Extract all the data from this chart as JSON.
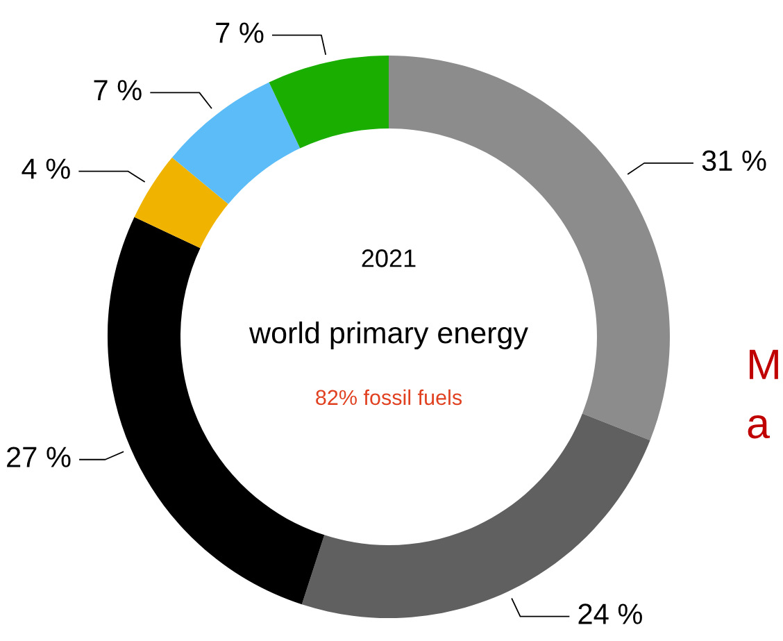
{
  "chart_data": {
    "type": "donut",
    "title": "2021",
    "subtitle": "world primary energy",
    "categories": [
      null,
      null,
      null,
      null,
      null,
      null
    ],
    "values": [
      31,
      24,
      27,
      4,
      7,
      7
    ],
    "colors": [
      "#8c8c8c",
      "#606060",
      "#000000",
      "#f0b400",
      "#5bbcf8",
      "#1aaf00"
    ],
    "value_labels": [
      "31 %",
      "24 %",
      "27 %",
      "4 %",
      "7 %",
      "7 %"
    ],
    "annotations": [
      "82% fossil fuels",
      "M",
      "a"
    ]
  }
}
